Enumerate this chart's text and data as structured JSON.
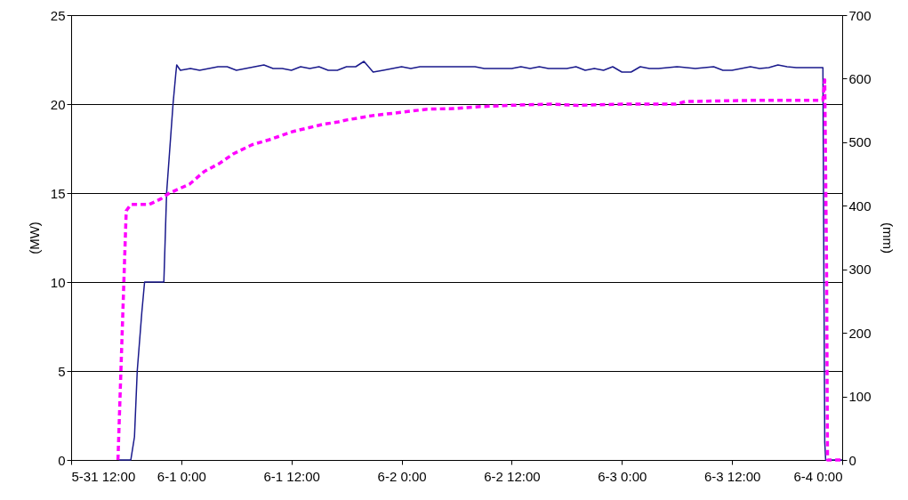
{
  "chart_data": {
    "type": "line",
    "xlim": [
      "--05-31T12:00",
      "--06-04T00:00"
    ],
    "xticks": [
      {
        "value": "--05-31T12:00",
        "label": "5-31 12:00"
      },
      {
        "value": "--06-01T00:00",
        "label": "6-1 0:00"
      },
      {
        "value": "--06-01T12:00",
        "label": "6-1 12:00"
      },
      {
        "value": "--06-02T00:00",
        "label": "6-2 0:00"
      },
      {
        "value": "--06-02T12:00",
        "label": "6-2 12:00"
      },
      {
        "value": "--06-03T00:00",
        "label": "6-3 0:00"
      },
      {
        "value": "--06-03T12:00",
        "label": "6-3 12:00"
      },
      {
        "value": "--06-04T00:00",
        "label": "6-4 0:00"
      }
    ],
    "ylim": [
      0,
      25
    ],
    "yticks": [
      0,
      5,
      10,
      15,
      20,
      25
    ],
    "ylabel": "(MW)",
    "y2lim": [
      0,
      700
    ],
    "y2ticks": [
      0,
      100,
      200,
      300,
      400,
      500,
      600,
      700
    ],
    "y2label": "(mm)",
    "grid": "y",
    "marker": "none",
    "series": [
      {
        "color": "#1a1a8c",
        "line_style": "solid",
        "x": [
          "--05-31T17:12",
          "--05-31T18:30",
          "--05-31T18:54",
          "--05-31T19:12",
          "--05-31T19:42",
          "--05-31T20:00",
          "--05-31T22:06",
          "--05-31T22:24",
          "--05-31T23:06",
          "--05-31T23:24",
          "--05-31T23:30",
          "--05-31T23:54",
          "--06-01T01:00",
          "--06-01T02:00",
          "--06-01T03:00",
          "--06-01T04:00",
          "--06-01T05:00",
          "--06-01T06:00",
          "--06-01T07:00",
          "--06-01T08:00",
          "--06-01T09:00",
          "--06-01T10:00",
          "--06-01T11:00",
          "--06-01T12:00",
          "--06-01T13:00",
          "--06-01T14:00",
          "--06-01T15:00",
          "--06-01T16:00",
          "--06-01T17:00",
          "--06-01T18:00",
          "--06-01T19:00",
          "--06-01T19:54",
          "--06-01T20:54",
          "--06-01T22:00",
          "--06-01T23:00",
          "--06-02T00:00",
          "--06-02T01:00",
          "--06-02T02:00",
          "--06-02T04:00",
          "--06-02T06:00",
          "--06-02T08:00",
          "--06-02T09:00",
          "--06-02T12:00",
          "--06-02T13:00",
          "--06-02T14:00",
          "--06-02T15:00",
          "--06-02T16:00",
          "--06-02T18:00",
          "--06-02T19:00",
          "--06-02T20:00",
          "--06-02T21:00",
          "--06-02T22:00",
          "--06-02T23:00",
          "--06-03T00:00",
          "--06-03T01:00",
          "--06-03T02:00",
          "--06-03T03:00",
          "--06-03T04:00",
          "--06-03T06:00",
          "--06-03T08:00",
          "--06-03T10:00",
          "--06-03T11:00",
          "--06-03T12:00",
          "--06-03T13:00",
          "--06-03T14:00",
          "--06-03T15:00",
          "--06-03T16:00",
          "--06-03T17:00",
          "--06-03T18:00",
          "--06-03T19:00",
          "--06-03T20:00",
          "--06-03T21:54",
          "--06-03T22:00",
          "--06-03T22:06",
          "--06-03T22:12",
          "--06-04T00:00"
        ],
        "values": [
          0,
          0,
          1.3,
          5,
          8.3,
          10,
          10,
          15,
          20,
          21.7,
          22.2,
          21.9,
          22.0,
          21.9,
          22.0,
          22.1,
          22.1,
          21.9,
          22.0,
          22.1,
          22.2,
          22.0,
          22.0,
          21.9,
          22.1,
          22.0,
          22.1,
          21.9,
          21.9,
          22.1,
          22.1,
          22.4,
          21.8,
          21.9,
          22.0,
          22.1,
          22.0,
          22.1,
          22.1,
          22.1,
          22.1,
          22.0,
          22.0,
          22.1,
          22.0,
          22.1,
          22.0,
          22.0,
          22.1,
          21.9,
          22.0,
          21.9,
          22.1,
          21.8,
          21.8,
          22.1,
          22.0,
          22.0,
          22.1,
          22.0,
          22.1,
          21.9,
          21.9,
          22.0,
          22.1,
          22.0,
          22.05,
          22.2,
          22.1,
          22.05,
          22.05,
          22.05,
          11,
          1,
          0,
          0
        ]
      },
      {
        "color": "#ff00ff",
        "line_style": "dashed",
        "axis": "y2",
        "x": [
          "--05-31T17:06",
          "--05-31T18:00",
          "--05-31T18:30",
          "--05-31T20:30",
          "--05-31T21:48",
          "--05-31T22:42",
          "--06-01T00:54",
          "--06-01T02:30",
          "--06-01T04:12",
          "--06-01T05:42",
          "--06-01T07:42",
          "--06-01T09:36",
          "--06-01T12:12",
          "--06-01T15:24",
          "--06-01T17:06",
          "--06-01T18:00",
          "--06-01T20:54",
          "--06-01T23:54",
          "--06-02T02:48",
          "--06-02T05:42",
          "--06-02T08:36",
          "--06-02T11:30",
          "--06-02T16:18",
          "--06-02T19:12",
          "--06-03T00:06",
          "--06-03T05:54",
          "--06-03T06:54",
          "--06-03T14:36",
          "--06-03T21:54",
          "--06-03T22:06",
          "--06-03T22:18",
          "--06-03T22:24",
          "--06-04T00:00"
        ],
        "values": [
          0,
          392,
          402,
          402,
          411,
          420,
          434,
          454,
          467,
          482,
          496,
          504,
          517,
          528,
          532,
          535,
          542,
          547,
          552,
          553,
          556,
          558,
          560,
          558,
          560,
          560,
          564,
          566,
          566,
          598,
          300,
          0,
          0
        ]
      }
    ]
  }
}
